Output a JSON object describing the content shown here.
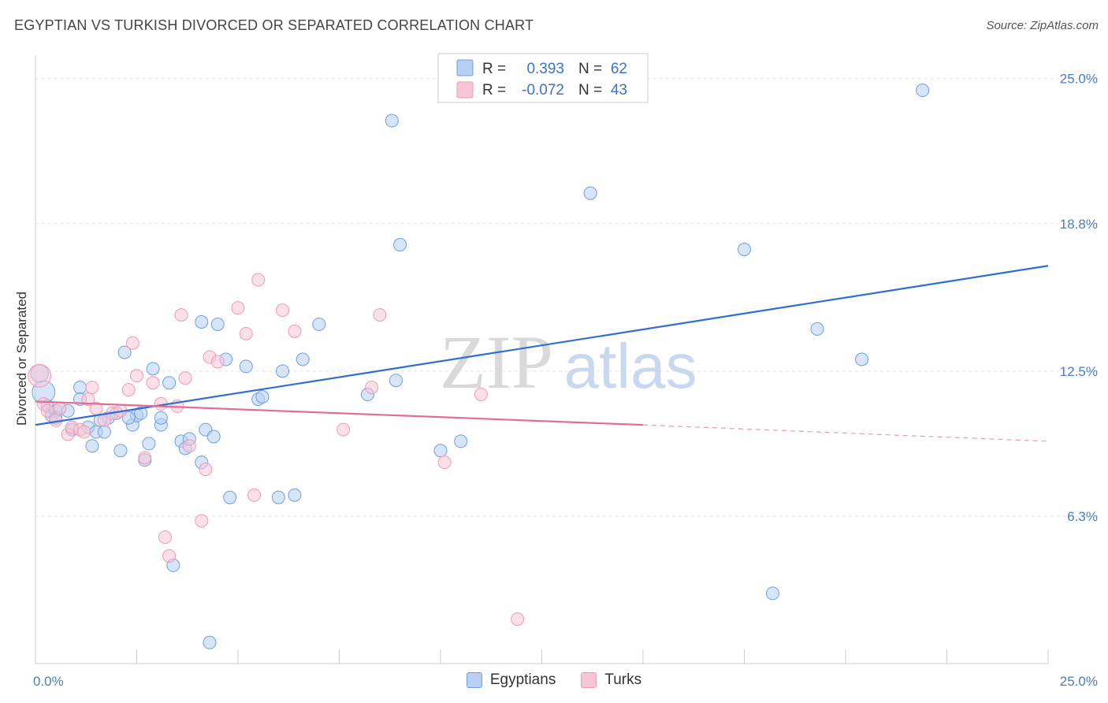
{
  "header": {
    "title": "EGYPTIAN VS TURKISH DIVORCED OR SEPARATED CORRELATION CHART",
    "source": "Source: ZipAtlas.com"
  },
  "watermark": {
    "zip": "ZIP",
    "atlas": "atlas"
  },
  "chart_data": {
    "type": "scatter",
    "ylabel": "Divorced or Separated",
    "xlim": [
      0,
      25
    ],
    "ylim": [
      0,
      26
    ],
    "x_tick_labels": [
      {
        "value": 0,
        "label": "0.0%"
      },
      {
        "value": 25,
        "label": "25.0%"
      }
    ],
    "y_ticks": [
      {
        "value": 6.3,
        "label": "6.3%"
      },
      {
        "value": 12.5,
        "label": "12.5%"
      },
      {
        "value": 18.8,
        "label": "18.8%"
      },
      {
        "value": 25.0,
        "label": "25.0%"
      }
    ],
    "grid": true,
    "legend_position": "top-center",
    "series": [
      {
        "name": "Egyptians",
        "color": "#6f9ee0",
        "fill": "#b7cff2",
        "r_label": "R =",
        "r_value": "0.393",
        "n_label": "N =",
        "n_value": "62",
        "trend": {
          "x": [
            0,
            25
          ],
          "y": [
            10.2,
            17.0
          ],
          "style": "solid"
        },
        "points": [
          [
            0.2,
            11.6,
            1.8
          ],
          [
            0.1,
            12.4,
            1.4
          ],
          [
            0.3,
            11.0,
            1
          ],
          [
            0.4,
            10.6,
            1
          ],
          [
            0.5,
            10.8,
            1
          ],
          [
            0.6,
            10.9,
            1
          ],
          [
            0.8,
            10.8,
            1
          ],
          [
            0.9,
            10.0,
            1
          ],
          [
            1.1,
            11.8,
            1
          ],
          [
            1.1,
            11.3,
            1
          ],
          [
            1.3,
            10.1,
            1
          ],
          [
            1.4,
            9.3,
            1
          ],
          [
            1.5,
            9.9,
            1
          ],
          [
            1.7,
            9.9,
            1
          ],
          [
            1.8,
            10.5,
            1
          ],
          [
            2.0,
            10.7,
            1
          ],
          [
            2.1,
            9.1,
            1
          ],
          [
            2.2,
            13.3,
            1
          ],
          [
            2.4,
            10.2,
            1
          ],
          [
            2.5,
            10.6,
            1
          ],
          [
            2.6,
            10.7,
            1
          ],
          [
            2.7,
            8.7,
            1
          ],
          [
            2.8,
            9.4,
            1
          ],
          [
            2.9,
            12.6,
            1
          ],
          [
            3.1,
            10.2,
            1
          ],
          [
            3.1,
            10.5,
            1
          ],
          [
            3.3,
            12.0,
            1
          ],
          [
            3.4,
            4.2,
            1
          ],
          [
            3.6,
            9.5,
            1
          ],
          [
            3.7,
            9.2,
            1
          ],
          [
            3.8,
            9.6,
            1
          ],
          [
            4.1,
            8.6,
            1
          ],
          [
            4.1,
            14.6,
            1
          ],
          [
            4.2,
            10.0,
            1
          ],
          [
            4.3,
            0.9,
            1
          ],
          [
            4.4,
            9.7,
            1
          ],
          [
            4.5,
            14.5,
            1
          ],
          [
            4.7,
            13.0,
            1
          ],
          [
            4.8,
            7.1,
            1
          ],
          [
            5.2,
            12.7,
            1
          ],
          [
            5.5,
            11.3,
            1
          ],
          [
            5.6,
            11.4,
            1
          ],
          [
            6.0,
            7.1,
            1
          ],
          [
            6.1,
            12.5,
            1
          ],
          [
            6.4,
            7.2,
            1
          ],
          [
            6.6,
            13.0,
            1
          ],
          [
            7.0,
            14.5,
            1
          ],
          [
            8.2,
            11.5,
            1
          ],
          [
            8.8,
            23.2,
            1
          ],
          [
            8.9,
            12.1,
            1
          ],
          [
            9.0,
            17.9,
            1
          ],
          [
            10.0,
            9.1,
            1
          ],
          [
            10.5,
            9.5,
            1
          ],
          [
            13.7,
            20.1,
            1
          ],
          [
            18.2,
            3.0,
            1
          ],
          [
            17.5,
            17.7,
            1
          ],
          [
            19.3,
            14.3,
            1
          ],
          [
            20.4,
            13.0,
            1
          ],
          [
            21.9,
            24.5,
            1
          ],
          [
            0.5,
            10.5,
            1
          ],
          [
            2.3,
            10.5,
            1
          ],
          [
            1.6,
            10.4,
            1
          ]
        ]
      },
      {
        "name": "Turks",
        "color": "#ef9ab5",
        "fill": "#f7c6d6",
        "r_label": "R =",
        "r_value": "-0.072",
        "n_label": "N =",
        "n_value": "43",
        "trend": {
          "x": [
            0,
            15
          ],
          "y": [
            11.2,
            10.2
          ],
          "style": "solid",
          "dashed_to": [
            25,
            9.5
          ]
        },
        "points": [
          [
            0.1,
            12.3,
            1.8
          ],
          [
            0.2,
            11.1,
            1
          ],
          [
            0.3,
            10.8,
            1
          ],
          [
            0.5,
            10.4,
            1
          ],
          [
            0.6,
            10.9,
            1
          ],
          [
            0.8,
            9.8,
            1
          ],
          [
            0.9,
            10.1,
            1
          ],
          [
            1.1,
            10.0,
            1
          ],
          [
            1.2,
            9.9,
            1
          ],
          [
            1.3,
            11.3,
            1
          ],
          [
            1.4,
            11.8,
            1
          ],
          [
            1.5,
            10.9,
            1
          ],
          [
            1.7,
            10.4,
            1
          ],
          [
            1.9,
            10.7,
            1
          ],
          [
            2.1,
            10.8,
            1
          ],
          [
            2.3,
            11.7,
            1
          ],
          [
            2.4,
            13.7,
            1
          ],
          [
            2.5,
            12.3,
            1
          ],
          [
            2.7,
            8.8,
            1
          ],
          [
            2.9,
            12.0,
            1
          ],
          [
            3.1,
            11.1,
            1
          ],
          [
            3.2,
            5.4,
            1
          ],
          [
            3.3,
            4.6,
            1
          ],
          [
            3.5,
            11.0,
            1
          ],
          [
            3.6,
            14.9,
            1
          ],
          [
            3.7,
            12.2,
            1
          ],
          [
            3.8,
            9.3,
            1
          ],
          [
            4.1,
            6.1,
            1
          ],
          [
            4.2,
            8.3,
            1
          ],
          [
            4.3,
            13.1,
            1
          ],
          [
            4.5,
            12.9,
            1
          ],
          [
            5.0,
            15.2,
            1
          ],
          [
            5.2,
            14.1,
            1
          ],
          [
            5.4,
            7.2,
            1
          ],
          [
            5.5,
            16.4,
            1
          ],
          [
            6.1,
            15.1,
            1
          ],
          [
            6.4,
            14.2,
            1
          ],
          [
            7.6,
            10.0,
            1
          ],
          [
            8.3,
            11.8,
            1
          ],
          [
            8.5,
            14.9,
            1
          ],
          [
            10.1,
            8.6,
            1
          ],
          [
            11.0,
            11.5,
            1
          ],
          [
            11.9,
            1.9,
            1
          ]
        ]
      }
    ]
  }
}
